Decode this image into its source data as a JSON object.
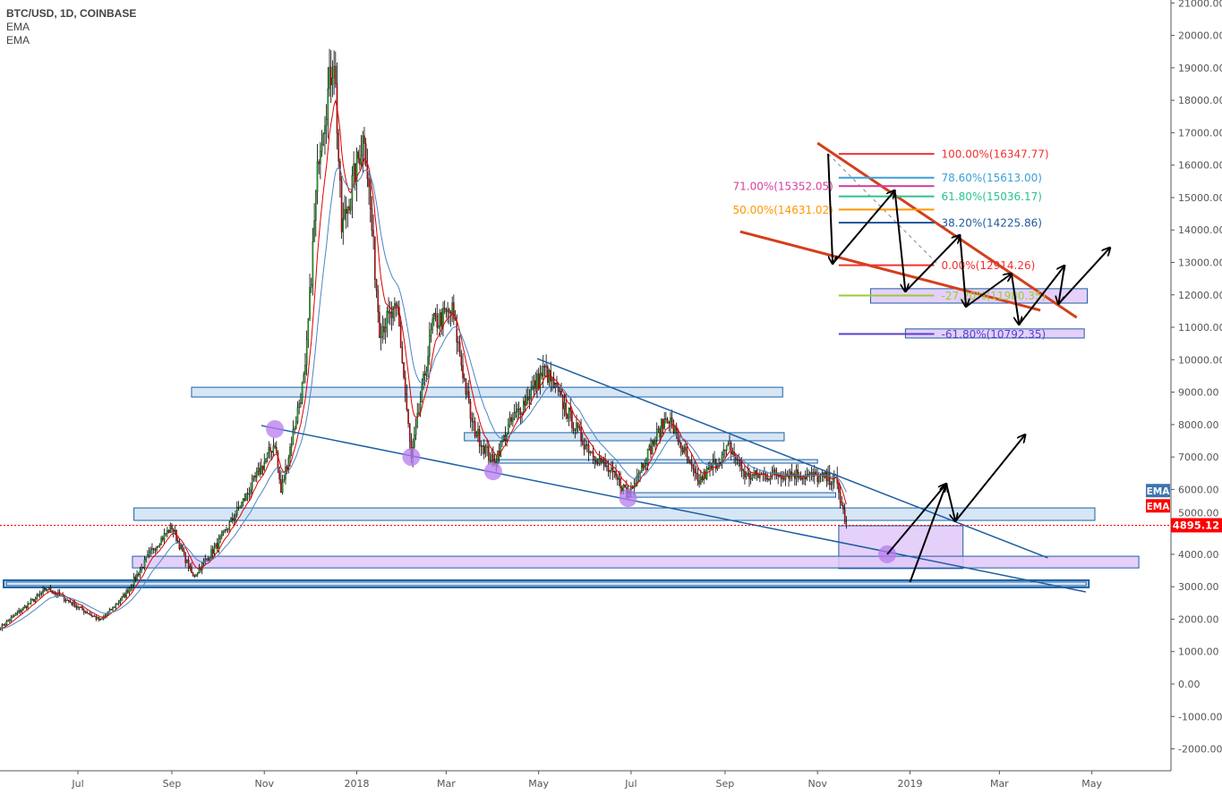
{
  "header": {
    "symbol": "BTC/USD, 1D, COINBASE",
    "indicators": [
      "EMA",
      "EMA"
    ]
  },
  "chart_data": {
    "type": "candlestick",
    "title": "BTC/USD, 1D, COINBASE",
    "ylim": [
      -2500,
      21100
    ],
    "yticks": [
      -2000,
      -1000,
      0,
      1000,
      2000,
      3000,
      4000,
      5000,
      6000,
      7000,
      8000,
      9000,
      10000,
      11000,
      12000,
      13000,
      14000,
      15000,
      16000,
      17000,
      18000,
      19000,
      20000,
      21000
    ],
    "xlim": [
      "2017-05-11",
      "2019-06-22"
    ],
    "xticks": [
      {
        "date": "2017-07-01",
        "label": "Jul"
      },
      {
        "date": "2017-09-01",
        "label": "Sep"
      },
      {
        "date": "2017-11-01",
        "label": "Nov"
      },
      {
        "date": "2018-01-01",
        "label": "2018"
      },
      {
        "date": "2018-03-01",
        "label": "Mar"
      },
      {
        "date": "2018-05-01",
        "label": "May"
      },
      {
        "date": "2018-07-01",
        "label": "Jul"
      },
      {
        "date": "2018-09-01",
        "label": "Sep"
      },
      {
        "date": "2018-11-01",
        "label": "Nov"
      },
      {
        "date": "2019-01-01",
        "label": "2019"
      },
      {
        "date": "2019-03-01",
        "label": "Mar"
      },
      {
        "date": "2019-05-01",
        "label": "May"
      }
    ],
    "price_path": [
      [
        "2017-05-11",
        1750
      ],
      [
        "2017-05-25",
        2300
      ],
      [
        "2017-06-11",
        2950
      ],
      [
        "2017-06-25",
        2550
      ],
      [
        "2017-07-16",
        1950
      ],
      [
        "2017-08-01",
        2750
      ],
      [
        "2017-08-20",
        4200
      ],
      [
        "2017-09-01",
        4850
      ],
      [
        "2017-09-15",
        3300
      ],
      [
        "2017-10-01",
        4300
      ],
      [
        "2017-10-20",
        5800
      ],
      [
        "2017-11-08",
        7450
      ],
      [
        "2017-11-12",
        5900
      ],
      [
        "2017-11-28",
        9600
      ],
      [
        "2017-12-07",
        16500
      ],
      [
        "2017-12-17",
        19400
      ],
      [
        "2017-12-22",
        14000
      ],
      [
        "2018-01-06",
        17000
      ],
      [
        "2018-01-16",
        11000
      ],
      [
        "2018-01-28",
        11500
      ],
      [
        "2018-02-06",
        6900
      ],
      [
        "2018-02-20",
        11100
      ],
      [
        "2018-03-05",
        11500
      ],
      [
        "2018-03-18",
        8000
      ],
      [
        "2018-04-01",
        6800
      ],
      [
        "2018-04-12",
        8000
      ],
      [
        "2018-05-05",
        9700
      ],
      [
        "2018-05-30",
        7500
      ],
      [
        "2018-06-29",
        5900
      ],
      [
        "2018-07-25",
        8300
      ],
      [
        "2018-08-14",
        6200
      ],
      [
        "2018-09-04",
        7300
      ],
      [
        "2018-09-15",
        6400
      ],
      [
        "2018-10-15",
        6500
      ],
      [
        "2018-11-13",
        6300
      ],
      [
        "2018-11-20",
        4895.12
      ]
    ],
    "indicators": [
      {
        "name": "EMA",
        "period": 9,
        "color": "#e00000"
      },
      {
        "name": "EMA",
        "period": 21,
        "color": "#4a86c5"
      }
    ],
    "last_price": 4895.12,
    "colors": {
      "up": "#15b315",
      "down": "#e60000",
      "wick": "#000000",
      "last_price": "#ff0000",
      "trend_blue": "#1d5fa3",
      "trend_red": "#d2401c",
      "zone_blue": "#cfe2f3",
      "zone_purple": "#e0c8f8"
    },
    "zones": [
      {
        "kind": "blue",
        "from": "2017-09-14",
        "to": "2018-10-09",
        "top": 9150,
        "bottom": 8850
      },
      {
        "kind": "blue",
        "from": "2018-03-13",
        "to": "2018-10-10",
        "top": 7750,
        "bottom": 7500
      },
      {
        "kind": "blue",
        "from": "2018-04-01",
        "to": "2018-11-01",
        "top": 6920,
        "bottom": 6810
      },
      {
        "kind": "blue",
        "from": "2018-06-28",
        "to": "2018-11-13",
        "top": 5900,
        "bottom": 5760
      },
      {
        "kind": "blue",
        "from": "2017-08-07",
        "to": "2019-05-03",
        "top": 5430,
        "bottom": 5045
      },
      {
        "kind": "purple",
        "from": "2018-11-15",
        "to": "2019-02-05",
        "top": 4880,
        "bottom": 3560
      },
      {
        "kind": "purple",
        "from": "2017-08-06",
        "to": "2019-06-01",
        "top": 3940,
        "bottom": 3580
      },
      {
        "kind": "blue-double",
        "from": "2017-05-13",
        "to": "2019-04-29",
        "top": 3200,
        "bottom": 2980
      },
      {
        "kind": "purple",
        "from": "2018-12-06",
        "to": "2019-04-28",
        "top": 12190,
        "bottom": 11745
      },
      {
        "kind": "purple",
        "from": "2018-12-29",
        "to": "2019-04-26",
        "top": 10950,
        "bottom": 10670
      }
    ],
    "trendlines": [
      {
        "color": "blue",
        "p1": [
          "2017-10-30",
          7970
        ],
        "p2": [
          "2019-04-27",
          2840
        ]
      },
      {
        "color": "blue",
        "p1": [
          "2018-04-30",
          10035
        ],
        "p2": [
          "2019-04-02",
          3890
        ]
      },
      {
        "color": "red",
        "p1": [
          "2018-09-11",
          13950
        ],
        "p2": [
          "2019-03-28",
          11525
        ]
      },
      {
        "color": "red",
        "p1": [
          "2018-11-01",
          16680
        ],
        "p2": [
          "2019-04-21",
          11300
        ]
      }
    ],
    "circles": [
      [
        "2017-11-08",
        7860
      ],
      [
        "2018-02-06",
        7000
      ],
      [
        "2018-04-01",
        6560
      ],
      [
        "2018-06-29",
        5730
      ],
      [
        "2018-12-17",
        4000
      ]
    ],
    "fibonacci": {
      "from": "2018-11-15",
      "to": "2019-01-17",
      "dashed": [
        [
          "2018-11-08",
          16350
        ],
        [
          "2019-01-20",
          12914
        ]
      ],
      "levels": [
        {
          "label": "100.00%(16347.77)",
          "price": 16347.77,
          "color": "#f23030"
        },
        {
          "label": "78.60%(15613.00)",
          "price": 15613.0,
          "color": "#3aa0d8"
        },
        {
          "label": "71.00%(15352.05)",
          "price": 15352.05,
          "color": "#d63fa0"
        },
        {
          "label": "61.80%(15036.17)",
          "price": 15036.17,
          "color": "#2bc28f"
        },
        {
          "label": "50.00%(14631.02)",
          "price": 14631.02,
          "color": "#ff9800"
        },
        {
          "label": "38.20%(14225.86)",
          "price": 14225.86,
          "color": "#1e5a9a"
        },
        {
          "label": "0.00%(12914.26)",
          "price": 12914.26,
          "color": "#f23030"
        },
        {
          "label": "-27.20%(11980.35)",
          "price": 11980.35,
          "color": "#9acd32"
        },
        {
          "label": "-61.80%(10792.35)",
          "price": 10792.35,
          "color": "#5b3fd0"
        }
      ]
    },
    "arrow_paths": [
      [
        [
          "2018-11-08",
          16350
        ],
        [
          "2018-11-11",
          12960
        ],
        [
          "2018-12-22",
          15220
        ],
        [
          "2018-12-29",
          12100
        ],
        [
          "2019-02-03",
          13840
        ],
        [
          "2019-02-07",
          11635
        ],
        [
          "2019-03-09",
          12655
        ],
        [
          "2019-03-14",
          11085
        ],
        [
          "2019-04-13",
          12900
        ],
        [
          "2019-04-09",
          11720
        ],
        [
          "2019-05-13",
          13455
        ]
      ],
      [
        [
          "2018-12-17",
          4000
        ],
        [
          "2019-01-25",
          6175
        ],
        [
          "2019-01-31",
          5020
        ],
        [
          "2019-03-18",
          7690
        ]
      ],
      [
        [
          "2019-01-01",
          3140
        ],
        [
          "2019-01-25",
          6175
        ]
      ]
    ],
    "axis_badges": [
      {
        "label": "EMA",
        "color": "#3d74b0",
        "price": 5950
      },
      {
        "label": "EMA",
        "color": "#ff0000",
        "price": 5480
      }
    ],
    "last_price_label": "4895.12"
  }
}
